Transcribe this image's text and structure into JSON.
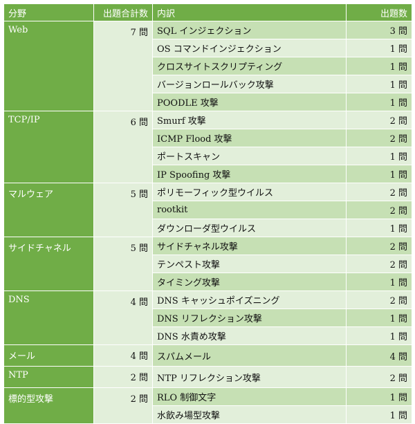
{
  "headers": {
    "category": "分野",
    "total": "出題合計数",
    "item": "内訳",
    "count": "出題数"
  },
  "groups": [
    {
      "category": "Web",
      "total": "7 問",
      "items": [
        {
          "name": "SQL インジェクション",
          "count": "3 問"
        },
        {
          "name": "OS コマンドインジェクション",
          "count": "1 問"
        },
        {
          "name": "クロスサイトスクリプティング",
          "count": "1 問"
        },
        {
          "name": "バージョンロールバック攻撃",
          "count": "1 問"
        },
        {
          "name": "POODLE 攻撃",
          "count": "1 問"
        }
      ]
    },
    {
      "category": "TCP/IP",
      "total": "6 問",
      "items": [
        {
          "name": "Smurf 攻撃",
          "count": "2 問"
        },
        {
          "name": "ICMP Flood 攻撃",
          "count": "2 問"
        },
        {
          "name": "ポートスキャン",
          "count": "1 問"
        },
        {
          "name": "IP Spoofing 攻撃",
          "count": "1 問"
        }
      ]
    },
    {
      "category": "マルウェア",
      "total": "5 問",
      "items": [
        {
          "name": "ポリモーフィック型ウイルス",
          "count": "2 問"
        },
        {
          "name": "rootkit",
          "count": "2 問"
        },
        {
          "name": "ダウンローダ型ウイルス",
          "count": "1 問"
        }
      ]
    },
    {
      "category": "サイドチャネル",
      "total": "5 問",
      "items": [
        {
          "name": "サイドチャネル攻撃",
          "count": "2 問"
        },
        {
          "name": "テンペスト攻撃",
          "count": "2 問"
        },
        {
          "name": "タイミング攻撃",
          "count": "1 問"
        }
      ]
    },
    {
      "category": "DNS",
      "total": "4 問",
      "items": [
        {
          "name": "DNS キャッシュポイズニング",
          "count": "2 問"
        },
        {
          "name": "DNS リフレクション攻撃",
          "count": "1 問"
        },
        {
          "name": "DNS 水責め攻撃",
          "count": "1 問"
        }
      ]
    },
    {
      "category": "メール",
      "total": "4 問",
      "items": [
        {
          "name": "スパムメール",
          "count": "4 問"
        }
      ]
    },
    {
      "category": "NTP",
      "total": "2 問",
      "items": [
        {
          "name": "NTP リフレクション攻撃",
          "count": "2 問"
        }
      ]
    },
    {
      "category": "標的型攻撃",
      "total": "2 問",
      "items": [
        {
          "name": "RLO 制御文字",
          "count": "1 問"
        },
        {
          "name": "水飲み場型攻撃",
          "count": "1 問"
        }
      ]
    }
  ]
}
